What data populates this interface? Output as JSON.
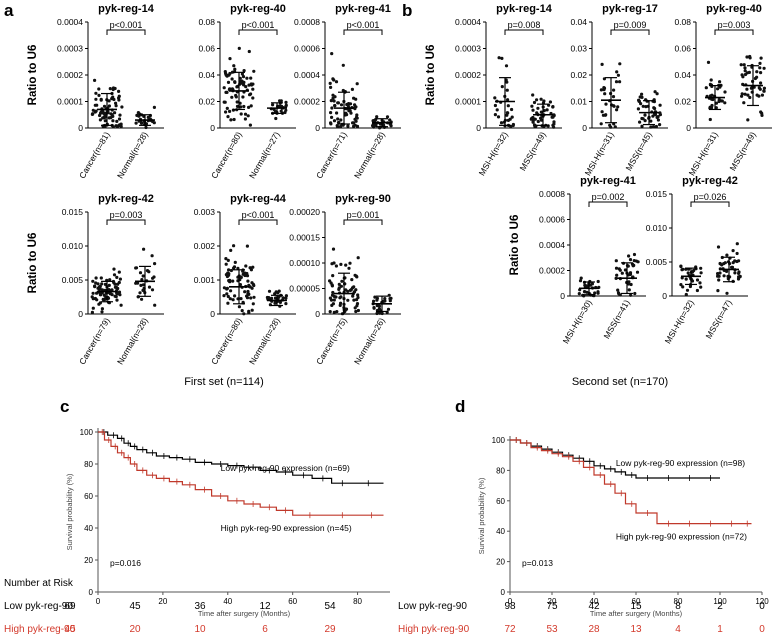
{
  "panel_labels": {
    "a": "a",
    "b": "b",
    "c": "c",
    "d": "d"
  },
  "set_labels": {
    "first": "First set (n=114)",
    "second": "Second set (n=170)"
  },
  "ylabel_ratio": "Ratio to U6",
  "chart_data": [
    {
      "type": "scatter",
      "group": "a",
      "title": "pyk-reg-14",
      "pvalue": "p<0.001",
      "ylim": [
        0,
        0.0004
      ],
      "yticks": [
        "0",
        "0.0001",
        "0.0002",
        "0.0003",
        "0.0004"
      ],
      "ylabel": "Ratio to U6",
      "categories": [
        "Cancer(n=81)",
        "Normal(n=28)"
      ],
      "means": [
        7e-05,
        3e-05
      ],
      "sds": [
        6e-05,
        2e-05
      ],
      "n": [
        81,
        28
      ]
    },
    {
      "type": "scatter",
      "group": "a",
      "title": "pyk-reg-40",
      "pvalue": "p<0.001",
      "ylim": [
        0,
        0.08
      ],
      "yticks": [
        "0",
        "0.02",
        "0.04",
        "0.06",
        "0.08"
      ],
      "ylabel": "",
      "categories": [
        "Cancer(n=80)",
        "Normal(n=27)"
      ],
      "means": [
        0.028,
        0.015
      ],
      "sds": [
        0.014,
        0.004
      ],
      "n": [
        80,
        27
      ]
    },
    {
      "type": "scatter",
      "group": "a",
      "title": "pyk-reg-41",
      "pvalue": "p<0.001",
      "ylim": [
        0,
        0.0008
      ],
      "yticks": [
        "0",
        "0.0002",
        "0.0004",
        "0.0006",
        "0.0008"
      ],
      "ylabel": "",
      "categories": [
        "Cancer(n=71)",
        "Normal(n=28)"
      ],
      "means": [
        0.00015,
        4e-05
      ],
      "sds": [
        0.00012,
        3e-05
      ],
      "n": [
        71,
        28
      ]
    },
    {
      "type": "scatter",
      "group": "b",
      "title": "pyk-reg-14",
      "pvalue": "p=0.008",
      "ylim": [
        0,
        0.0004
      ],
      "yticks": [
        "0",
        "0.0001",
        "0.0002",
        "0.0003",
        "0.0004"
      ],
      "ylabel": "Ratio to U6",
      "categories": [
        "MSI-H(n=32)",
        "MSS(n=49)"
      ],
      "means": [
        0.0001,
        5e-05
      ],
      "sds": [
        9e-05,
        4e-05
      ],
      "n": [
        32,
        49
      ]
    },
    {
      "type": "scatter",
      "group": "b",
      "title": "pyk-reg-17",
      "pvalue": "p=0.009",
      "ylim": [
        0,
        0.04
      ],
      "yticks": [
        "0",
        "0.01",
        "0.02",
        "0.03",
        "0.04"
      ],
      "ylabel": "",
      "categories": [
        "MSI-H(n=31)",
        "MSS(n=45)"
      ],
      "means": [
        0.0105,
        0.0058
      ],
      "sds": [
        0.0085,
        0.0045
      ],
      "n": [
        31,
        45
      ]
    },
    {
      "type": "scatter",
      "group": "b",
      "title": "pyk-reg-40",
      "pvalue": "p=0.003",
      "ylim": [
        0,
        0.08
      ],
      "yticks": [
        "0",
        "0.02",
        "0.04",
        "0.06",
        "0.08"
      ],
      "ylabel": "",
      "categories": [
        "MSI-H(n=31)",
        "MSS(n=49)"
      ],
      "means": [
        0.023,
        0.032
      ],
      "sds": [
        0.009,
        0.015
      ],
      "n": [
        31,
        49
      ]
    },
    {
      "type": "scatter",
      "group": "a",
      "title": "pyk-reg-42",
      "pvalue": "p=0.003",
      "ylim": [
        0,
        0.015
      ],
      "yticks": [
        "0",
        "0.005",
        "0.010",
        "0.015"
      ],
      "ylabel": "Ratio to U6",
      "categories": [
        "Cancer(n=79)",
        "Normal(n=28)"
      ],
      "means": [
        0.0033,
        0.0048
      ],
      "sds": [
        0.0015,
        0.0022
      ],
      "n": [
        79,
        28
      ]
    },
    {
      "type": "scatter",
      "group": "a",
      "title": "pyk-reg-44",
      "pvalue": "p<0.001",
      "ylim": [
        0,
        0.003
      ],
      "yticks": [
        "0",
        "0.001",
        "0.002",
        "0.003"
      ],
      "ylabel": "",
      "categories": [
        "Cancer(n=80)",
        "Normal(n=28)"
      ],
      "means": [
        0.0008,
        0.0004
      ],
      "sds": [
        0.0005,
        0.00015
      ],
      "n": [
        80,
        28
      ]
    },
    {
      "type": "scatter",
      "group": "a",
      "title": "pyk-reg-90",
      "pvalue": "p=0.001",
      "ylim": [
        0,
        0.0002
      ],
      "yticks": [
        "0",
        "0.00005",
        "0.00010",
        "0.00015",
        "0.00020"
      ],
      "ylabel": "",
      "categories": [
        "Cancer(n=75)",
        "Normal(n=26)"
      ],
      "means": [
        4e-05,
        2e-05
      ],
      "sds": [
        4e-05,
        1.5e-05
      ],
      "n": [
        75,
        26
      ]
    },
    {
      "type": "scatter",
      "group": "b",
      "title": "pyk-reg-41",
      "pvalue": "p=0.002",
      "ylim": [
        0,
        0.0008
      ],
      "yticks": [
        "0",
        "0.0002",
        "0.0004",
        "0.0006",
        "0.0008"
      ],
      "ylabel": "Ratio to U6",
      "categories": [
        "MSI-H(n=30)",
        "MSS(n=41)"
      ],
      "means": [
        6e-05,
        0.00014
      ],
      "sds": [
        5e-05,
        0.00012
      ],
      "n": [
        30,
        41
      ]
    },
    {
      "type": "scatter",
      "group": "b",
      "title": "pyk-reg-42",
      "pvalue": "p=0.026",
      "ylim": [
        0,
        0.015
      ],
      "yticks": [
        "0",
        "0.005",
        "0.010",
        "0.015"
      ],
      "ylabel": "",
      "categories": [
        "MSI-H(n=32)",
        "MSS(n=47)"
      ],
      "means": [
        0.0029,
        0.0039
      ],
      "sds": [
        0.0012,
        0.0018
      ],
      "n": [
        32,
        47
      ]
    },
    {
      "type": "line",
      "group": "c",
      "ylabel": "Survival probability (%)",
      "xlabel": "Time after surgery (Months)",
      "xlim": [
        0,
        90
      ],
      "xticks": [
        0,
        20,
        40,
        60,
        80
      ],
      "ylim": [
        0,
        100
      ],
      "yticks": [
        0,
        20,
        40,
        60,
        80,
        100
      ],
      "pvalue": "p=0.016",
      "series": [
        {
          "name": "Low pyk-reg-90 expression (n=69)",
          "color": "#000000",
          "x": [
            0,
            3,
            6,
            8,
            10,
            12,
            15,
            18,
            22,
            26,
            30,
            35,
            40,
            45,
            50,
            55,
            60,
            66,
            72,
            78,
            88
          ],
          "y": [
            100,
            98,
            96,
            93,
            91,
            89,
            87,
            85,
            84,
            83,
            81,
            80,
            79,
            78,
            76,
            75,
            73,
            71,
            68,
            68,
            68
          ]
        },
        {
          "name": "High pyk-reg-90 expression (n=45)",
          "color": "#c0392b",
          "x": [
            0,
            2,
            4,
            6,
            8,
            10,
            12,
            15,
            18,
            22,
            26,
            30,
            35,
            40,
            45,
            50,
            55,
            60,
            70,
            80,
            88
          ],
          "y": [
            100,
            95,
            91,
            87,
            84,
            80,
            76,
            73,
            71,
            69,
            67,
            64,
            60,
            57,
            55,
            53,
            51,
            48,
            48,
            48,
            48
          ]
        }
      ],
      "risk_table": {
        "heading": "Number at Risk",
        "rows": [
          {
            "label": "Low pyk-reg-90",
            "color": "#000000",
            "values": [
              "69",
              "45",
              "36",
              "12",
              "54"
            ]
          },
          {
            "label": "High pyk-reg-90",
            "color": "#d33a2c",
            "values": [
              "45",
              "20",
              "10",
              "6",
              "29"
            ]
          }
        ]
      }
    },
    {
      "type": "line",
      "group": "d",
      "ylabel": "Survival probability (%)",
      "xlabel": "Time after surgery (Months)",
      "xlim": [
        0,
        120
      ],
      "xticks": [
        0,
        20,
        40,
        60,
        80,
        100,
        120
      ],
      "ylim": [
        0,
        100
      ],
      "yticks": [
        0,
        20,
        40,
        60,
        80,
        100
      ],
      "pvalue": "p=0.013",
      "series": [
        {
          "name": "Low pyk-reg-90 expression (n=98)",
          "color": "#000000",
          "x": [
            0,
            5,
            10,
            15,
            20,
            25,
            30,
            35,
            40,
            45,
            50,
            55,
            60,
            70,
            80,
            90,
            100
          ],
          "y": [
            100,
            98,
            96,
            94,
            92,
            90,
            88,
            86,
            83,
            81,
            79,
            77,
            75,
            75,
            75,
            75,
            75
          ]
        },
        {
          "name": "High pyk-reg-90 expression (n=72)",
          "color": "#c0392b",
          "x": [
            0,
            5,
            10,
            15,
            20,
            25,
            30,
            35,
            40,
            45,
            50,
            55,
            60,
            70,
            80,
            90,
            100,
            110,
            115
          ],
          "y": [
            100,
            98,
            95,
            93,
            91,
            89,
            86,
            82,
            77,
            71,
            65,
            58,
            52,
            45,
            45,
            45,
            45,
            45,
            45
          ]
        }
      ],
      "risk_table": {
        "heading": "",
        "rows": [
          {
            "label": "Low pyk-reg-90",
            "color": "#000000",
            "values": [
              "98",
              "75",
              "42",
              "15",
              "8",
              "2",
              "0"
            ]
          },
          {
            "label": "High pyk-reg-90",
            "color": "#d33a2c",
            "values": [
              "72",
              "53",
              "28",
              "13",
              "4",
              "1",
              "0"
            ]
          }
        ]
      }
    }
  ]
}
